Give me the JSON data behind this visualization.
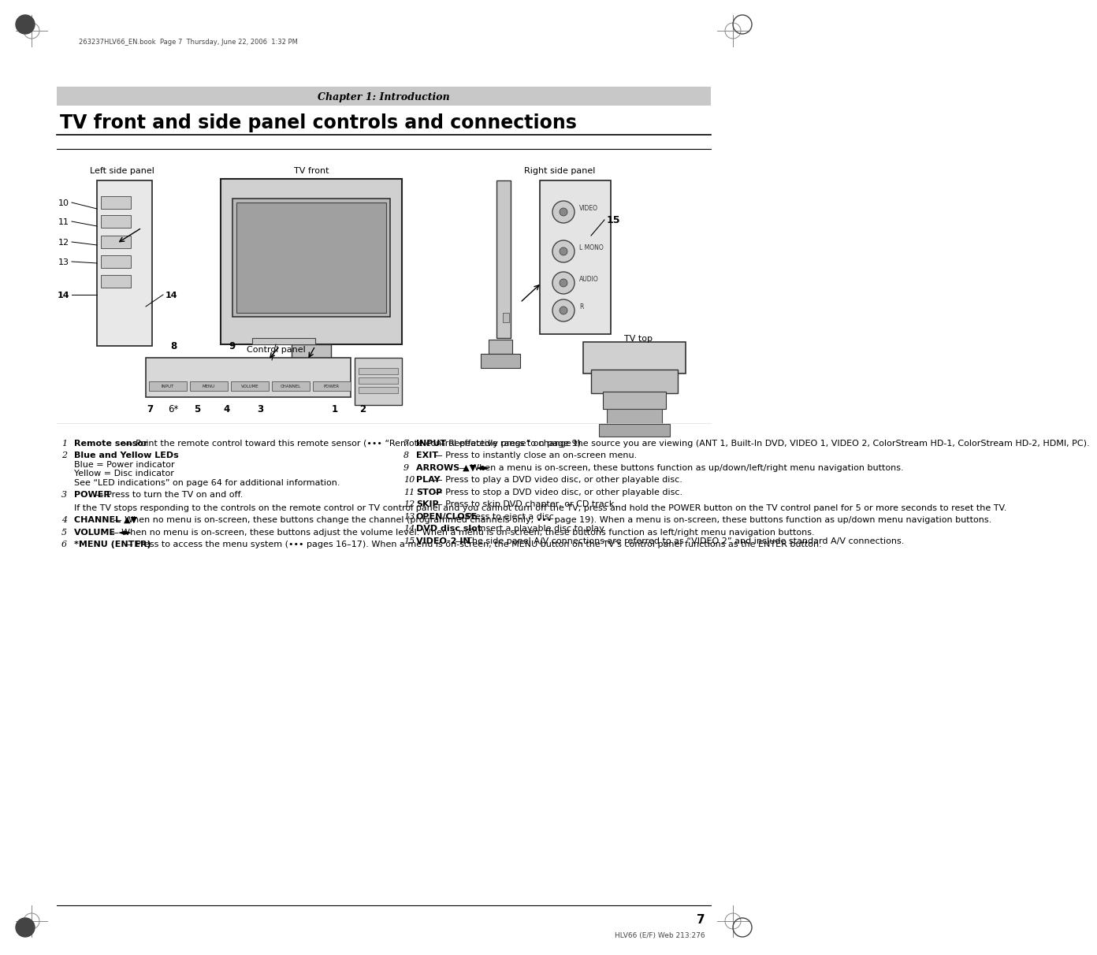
{
  "page_header_text": "263237HLV66_EN.book  Page 7  Thursday, June 22, 2006  1:32 PM",
  "chapter_header": "Chapter 1: Introduction",
  "page_title": "TV front and side panel controls and connections",
  "diagram_labels": {
    "left_side_panel": "Left side panel",
    "tv_front": "TV front",
    "right_side_panel": "Right side panel",
    "tv_top": "TV top",
    "control_panel": "Control panel",
    "nums_left": [
      "10",
      "11",
      "12",
      "13",
      "14"
    ],
    "nums_bottom": [
      "7",
      "6*",
      "5",
      "4",
      "3",
      "1",
      "2"
    ],
    "nums_right": [
      "8",
      "9",
      "15"
    ]
  },
  "items": [
    {
      "num": "1",
      "bold_part": "Remote sensor",
      "rest": " — Point the remote control toward this remote sensor (••• “Remote control effective range” on page 9)."
    },
    {
      "num": "2",
      "bold_part": "Blue and Yellow LEDs",
      "rest": "\nBlue = Power indicator\nYellow = Disc indicator\nSee “LED indications” on page 64 for additional information."
    },
    {
      "num": "3",
      "bold_part": "POWER",
      "rest": " — Press to turn the TV on and off.\n\nIf the TV stops responding to the controls on the remote control or TV control panel and you cannot turn off the TV, press and hold the POWER button on the TV control panel for 5 or more seconds to reset the TV."
    },
    {
      "num": "4",
      "bold_part": "CHANNEL ▲▼",
      "rest": " — When no menu is on-screen, these buttons change the channel (programmed channels only; ••• page 19). When a menu is on-screen, these buttons function as up/down menu navigation buttons."
    },
    {
      "num": "5",
      "bold_part": "VOLUME ◄►",
      "rest": " — When no menu is on-screen, these buttons adjust the volume level. When a menu is on-screen, these buttons function as left/right menu navigation buttons."
    },
    {
      "num": "6",
      "bold_part": "*MENU (ENTER)",
      "rest": " — Press to access the menu system (••• pages 16–17). When a menu is on-screen, the MENU button on the TV’s control panel functions as the ENTER button."
    },
    {
      "num": "7",
      "bold_part": "INPUT",
      "rest": " — Repeatedly press to change the source you are viewing (ANT 1, Built-In DVD, VIDEO 1, VIDEO 2, ColorStream HD-1, ColorStream HD-2, HDMI, PC)."
    },
    {
      "num": "8",
      "bold_part": "EXIT",
      "rest": " — Press to instantly close an on-screen menu."
    },
    {
      "num": "9",
      "bold_part": "ARROWS ▲▼◄►",
      "rest": " — When a menu is on-screen, these buttons function as up/down/left/right menu navigation buttons."
    },
    {
      "num": "10",
      "bold_part": "PLAY",
      "rest": " — Press to play a DVD video disc, or other playable disc."
    },
    {
      "num": "11",
      "bold_part": "STOP",
      "rest": " — Press to stop a DVD video disc, or other playable disc."
    },
    {
      "num": "12",
      "bold_part": "SKIP",
      "rest": " — Press to skip DVD chapter, or CD track."
    },
    {
      "num": "13",
      "bold_part": "OPEN/CLOSE",
      "rest": " — Press to eject a disc."
    },
    {
      "num": "14",
      "bold_part": "DVD disc slot",
      "rest": " — Insert a playable disc to play."
    },
    {
      "num": "15",
      "bold_part": "VIDEO-2 IN",
      "rest": " — The side panel A/V connections are referred to as “VIDEO 2” and include standard A/V connections."
    }
  ],
  "page_number": "7",
  "footer_text": "HLV66 (E/F) Web 213:276",
  "bg_color": "#ffffff",
  "chapter_bar_color": "#c8c8c8",
  "border_color": "#000000",
  "text_color": "#000000"
}
